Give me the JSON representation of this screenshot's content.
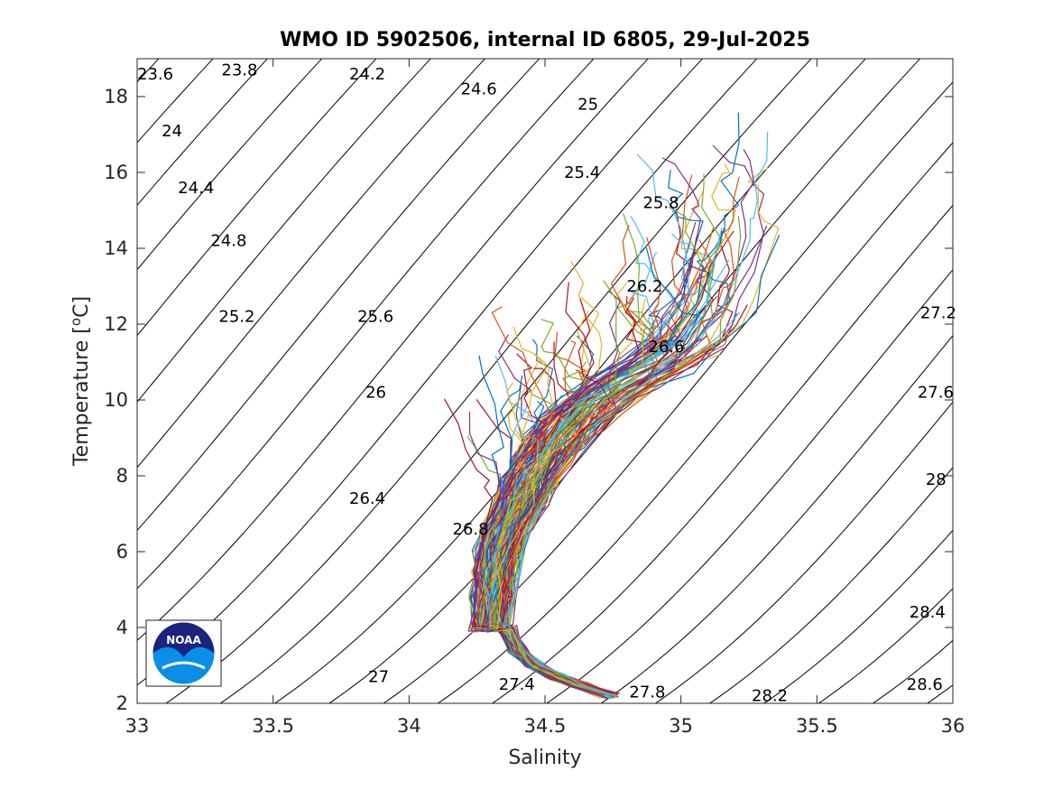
{
  "chart_data": {
    "type": "line",
    "title": "WMO ID 5902506, internal ID 6805, 29-Jul-2025",
    "xlabel": "Salinity",
    "ylabel": "Temperature [",
    "ylabel_sup": "o",
    "ylabel_unit": "C]",
    "xlim": [
      33,
      36
    ],
    "ylim": [
      2,
      19
    ],
    "xticks": [
      "33",
      "33.5",
      "34",
      "34.5",
      "35",
      "35.5",
      "36"
    ],
    "yticks": [
      "2",
      "4",
      "6",
      "8",
      "10",
      "12",
      "14",
      "16",
      "18"
    ],
    "grid": false,
    "isopycnal_labels": [
      {
        "text": "23.6",
        "s": 33.0,
        "t": 18.6
      },
      {
        "text": "23.8",
        "s": 33.31,
        "t": 18.7
      },
      {
        "text": "24.2",
        "s": 33.78,
        "t": 18.6
      },
      {
        "text": "24.6",
        "s": 34.19,
        "t": 18.2
      },
      {
        "text": "25",
        "s": 34.62,
        "t": 17.8
      },
      {
        "text": "24",
        "s": 33.09,
        "t": 17.1
      },
      {
        "text": "25.4",
        "s": 34.57,
        "t": 16.0
      },
      {
        "text": "24.4",
        "s": 33.15,
        "t": 15.6
      },
      {
        "text": "25.8",
        "s": 34.86,
        "t": 15.2
      },
      {
        "text": "24.8",
        "s": 33.27,
        "t": 14.2
      },
      {
        "text": "26.2",
        "s": 34.8,
        "t": 13.0
      },
      {
        "text": "25.2",
        "s": 33.3,
        "t": 12.2
      },
      {
        "text": "25.6",
        "s": 33.81,
        "t": 12.2
      },
      {
        "text": "27.2",
        "s": 35.88,
        "t": 12.3
      },
      {
        "text": "26.6",
        "s": 34.88,
        "t": 11.4
      },
      {
        "text": "26",
        "s": 33.84,
        "t": 10.2
      },
      {
        "text": "27.6",
        "s": 35.87,
        "t": 10.2
      },
      {
        "text": "28",
        "s": 35.9,
        "t": 7.9
      },
      {
        "text": "26.4",
        "s": 33.78,
        "t": 7.4
      },
      {
        "text": "26.8",
        "s": 34.16,
        "t": 6.6
      },
      {
        "text": "28.4",
        "s": 35.84,
        "t": 4.4
      },
      {
        "text": "27",
        "s": 33.85,
        "t": 2.7
      },
      {
        "text": "27.4",
        "s": 34.33,
        "t": 2.5
      },
      {
        "text": "27.8",
        "s": 34.81,
        "t": 2.3
      },
      {
        "text": "28.2",
        "s": 35.26,
        "t": 2.2
      },
      {
        "text": "28.6",
        "s": 35.83,
        "t": 2.5
      }
    ],
    "main_profile": {
      "s": [
        34.3,
        34.31,
        34.32,
        34.33,
        34.36,
        34.41,
        34.44,
        34.49,
        34.54,
        34.6,
        34.67,
        34.78,
        34.92,
        35.02,
        35.08,
        35.13,
        35.17,
        35.22,
        35.28
      ],
      "t": [
        4.0,
        4.8,
        5.4,
        6.0,
        6.6,
        7.3,
        7.8,
        8.4,
        8.9,
        9.4,
        9.9,
        10.4,
        11.0,
        11.5,
        12.1,
        12.6,
        13.5,
        14.5,
        15.5
      ]
    },
    "deep_tail": {
      "s": [
        34.36,
        34.4,
        34.46,
        34.54,
        34.62,
        34.74
      ],
      "t": [
        4.0,
        3.4,
        3.0,
        2.7,
        2.5,
        2.2
      ]
    },
    "series_colors": [
      "#0072bd",
      "#d95319",
      "#edb120",
      "#7e2f8e",
      "#77ac30",
      "#4dbeee",
      "#a2142f"
    ],
    "logo": {
      "text": "NOAA",
      "top_color": "#1a237e",
      "bottom_color": "#0a8ee8"
    }
  }
}
